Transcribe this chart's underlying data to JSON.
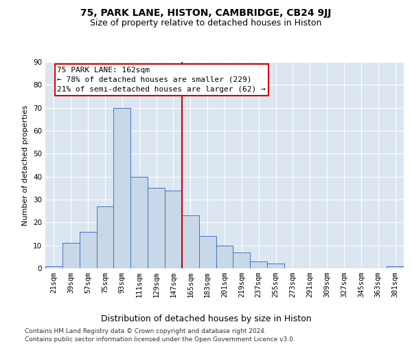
{
  "title": "75, PARK LANE, HISTON, CAMBRIDGE, CB24 9JJ",
  "subtitle": "Size of property relative to detached houses in Histon",
  "xlabel": "Distribution of detached houses by size in Histon",
  "ylabel": "Number of detached properties",
  "categories": [
    "21sqm",
    "39sqm",
    "57sqm",
    "75sqm",
    "93sqm",
    "111sqm",
    "129sqm",
    "147sqm",
    "165sqm",
    "183sqm",
    "201sqm",
    "219sqm",
    "237sqm",
    "255sqm",
    "273sqm",
    "291sqm",
    "309sqm",
    "327sqm",
    "345sqm",
    "363sqm",
    "381sqm"
  ],
  "values": [
    1,
    11,
    16,
    27,
    70,
    40,
    35,
    34,
    23,
    14,
    10,
    7,
    3,
    2,
    0,
    0,
    0,
    0,
    0,
    0,
    1
  ],
  "bar_color": "#c8d8e8",
  "bar_edge_color": "#4472c4",
  "vline_index": 8,
  "vline_color": "#cc0000",
  "annotation_text": "75 PARK LANE: 162sqm\n← 78% of detached houses are smaller (229)\n21% of semi-detached houses are larger (62) →",
  "annotation_box_color": "#cc0000",
  "ylim": [
    0,
    90
  ],
  "yticks": [
    0,
    10,
    20,
    30,
    40,
    50,
    60,
    70,
    80,
    90
  ],
  "background_color": "#dce6f1",
  "footer_line1": "Contains HM Land Registry data © Crown copyright and database right 2024.",
  "footer_line2": "Contains public sector information licensed under the Open Government Licence v3.0.",
  "title_fontsize": 10,
  "subtitle_fontsize": 9,
  "xlabel_fontsize": 9,
  "ylabel_fontsize": 8,
  "tick_fontsize": 7.5,
  "annotation_fontsize": 8,
  "footer_fontsize": 6.5
}
